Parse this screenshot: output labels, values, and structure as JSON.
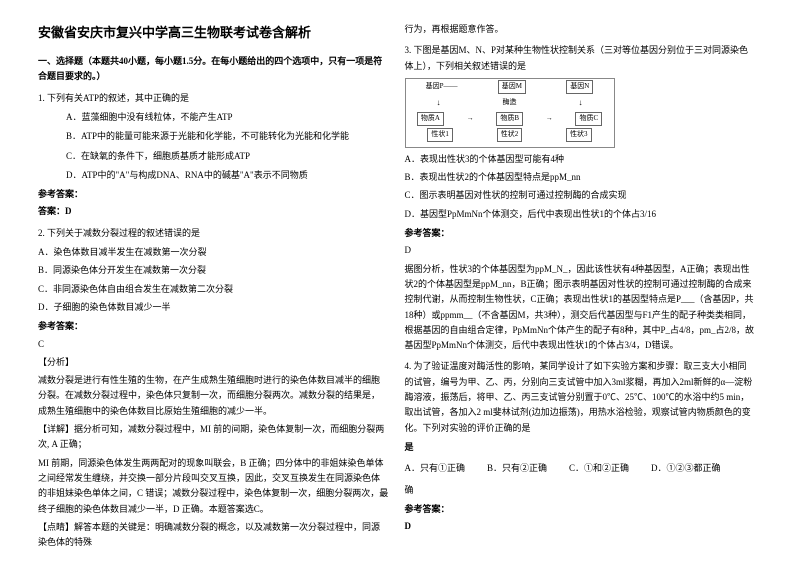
{
  "title": "安徽省安庆市复兴中学高三生物联考试卷含解析",
  "section1_head": "一、选择题（本题共40小题，每小题1.5分。在每小题给出的四个选项中，只有一项是符合题目要求的。）",
  "q1": {
    "stem": "1. 下列有关ATP的叙述，其中正确的是",
    "a": "A．蓝藻细胞中没有线粒体，不能产生ATP",
    "b": "B．ATP中的能量可能来源于光能和化学能，不可能转化为光能和化学能",
    "c": "C．在缺氧的条件下，细胞质基质才能形成ATP",
    "d": "D．ATP中的\"A\"与构成DNA、RNA中的碱基\"A\"表示不同物质",
    "ans_label": "参考答案：",
    "ans_label2": "答案：D"
  },
  "q2": {
    "stem": "2. 下列关于减数分裂过程的叙述错误的是",
    "a": "A．染色体数目减半发生在减数第一次分裂",
    "b": "B．同源染色体分开发生在减数第一次分裂",
    "c": "C．非同源染色体自由组合发生在减数第二次分裂",
    "d": "D．子细胞的染色体数目减少一半",
    "ans_label": "参考答案：",
    "ans": "C",
    "analysis_head": "【分析】",
    "analysis1": "减数分裂是进行有性生殖的生物，在产生成熟生殖细胞时进行的染色体数目减半的细胞分裂。在减数分裂过程中，染色体只复制一次，而细胞分裂两次。减数分裂的结果是，成熟生殖细胞中的染色体数目比原始生殖细胞的减少一半。",
    "detail_head": "【详解】据分析可知，减数分裂过程中，MI 前的间期，染色体复制一次，而细胞分裂两次, A 正确；",
    "detail_b": "MI 前期，同源染色体发生两两配对的现象叫联会，B 正确；四分体中的非姐妹染色单体之间经常发生缠绕，并交换一部分片段叫交叉互换，因此，交叉互换发生在同源染色体的非姐妹染色单体之间，C 错误；减数分裂过程中，染色体复制一次，细胞分裂两次，最终子细胞的染色体数目减少一半，D 正确。本题答案选C。",
    "point": "【点睛】解答本题的关键是：明确减数分裂的概念，以及减数第一次分裂过程中，同源染色体的特殊"
  },
  "right_top": "行为，再根据题意作答。",
  "q3": {
    "stem": "3. 下图是基因M、N、P对某种生物性状控制关系（三对等位基因分别位于三对同源染色体上），下列相关叙述错误的是",
    "diag": {
      "gene_m": "基因M",
      "gene_n": "基因N",
      "p_gene": "基因P——",
      "wu1": "物质A",
      "wu2": "物质B",
      "wu3": "物质C",
      "mei": "酶造",
      "xing1": "性状1",
      "xing2": "性状2",
      "xing3": "性状3"
    },
    "a": "A．表现出性状3的个体基因型可能有4种",
    "b": "B．表现出性状2的个体基因型特点是ppM_nn",
    "c": "C．图示表明基因对性状的控制可通过控制酶的合成实现",
    "d": "D．基因型PpMmNn个体测交，后代中表现出性状1的个体占3/16",
    "ans_label": "参考答案：",
    "ans": "D",
    "analysis": "据图分析，性状3的个体基因型为ppM_N_，因此该性状有4种基因型，A正确；表现出性状2的个体基因型是ppM_nn，B正确；图示表明基因对性状的控制可通过控制酶的合成来控制代谢，从而控制生物性状，C正确；表现出性状1的基因型特点是P___（含基因P，共18种）或ppmm__（不含基因M，共3种），测交后代基因型与F1产生的配子种类类相同，根据基因的自由组合定律，PpMmNn个体产生的配子有8种，其中P_占4/8，pm_占2/8，故基因型PpMmNn个体测交，后代中表现出性状1的个体占3/4，D错误。"
  },
  "q4": {
    "stem": "4. 为了验证温度对酶活性的影响，某同学设计了如下实验方案和步骤：取三支大小相同的试管，编号为甲、乙、丙，分别向三支试管中加入3ml浆糊，再加入2ml新鲜的α—淀粉酶溶液，振荡后，将甲、乙、丙三支试管分别置于0℃、25℃、100℃的水浴中约5 min，取出试管，各加入2 ml斐林试剂(边加边振荡)，用热水浴检验，观察试管内物质颜色的变化。下列对实验的评价正确的是",
    "opts": {
      "a": "A．只有①正确",
      "b": "B．只有②正确",
      "c": "C．①和②正确",
      "d": "D．①②③都正确"
    },
    "ans_label": "参考答案：",
    "ans": "D"
  }
}
